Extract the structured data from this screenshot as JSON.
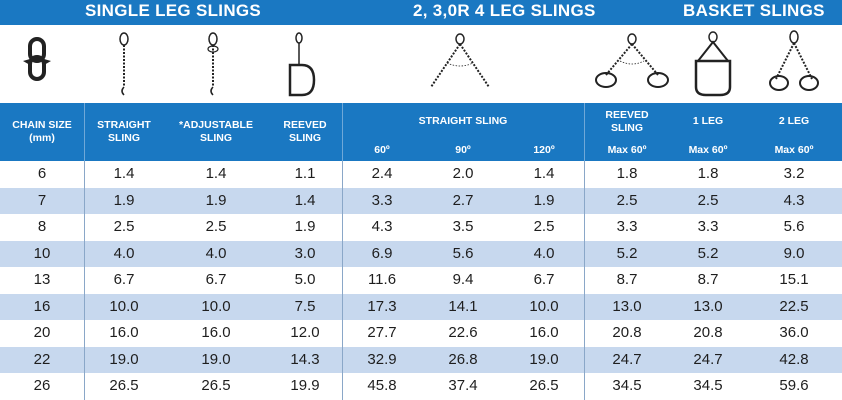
{
  "sections": {
    "single_leg": "SINGLE LEG SLINGS",
    "multi_leg": "2, 3,0R 4 LEG SLINGS",
    "basket": "BASKET SLINGS"
  },
  "icons": [
    "chain-link-icon",
    "straight-sling-icon",
    "adjustable-sling-icon",
    "reeved-sling-icon",
    "multi-leg-sling-icon",
    "reeved-basket-sling-icon",
    "basket-1-leg-icon",
    "basket-2-leg-icon"
  ],
  "headers": {
    "chain_size": "CHAIN SIZE",
    "chain_size_unit": "(mm)",
    "straight": "STRAIGHT",
    "straight_2": "SLING",
    "adjustable": "*ADJUSTABLE",
    "adjustable_2": "SLING",
    "reeved": "REEVED",
    "reeved_2": "SLING",
    "multi_straight": "STRAIGHT SLING",
    "angle_60": "60º",
    "angle_90": "90º",
    "angle_120": "120º",
    "basket_reeved": "REEVED",
    "basket_reeved_2": "SLING",
    "basket_reeved_max": "Max 60º",
    "basket_1leg": "1 LEG",
    "basket_1leg_max": "Max 60º",
    "basket_2leg": "2 LEG",
    "basket_2leg_max": "Max 60º"
  },
  "rows": [
    [
      "6",
      "1.4",
      "1.4",
      "1.1",
      "2.4",
      "2.0",
      "1.4",
      "1.8",
      "1.8",
      "3.2"
    ],
    [
      "7",
      "1.9",
      "1.9",
      "1.4",
      "3.3",
      "2.7",
      "1.9",
      "2.5",
      "2.5",
      "4.3"
    ],
    [
      "8",
      "2.5",
      "2.5",
      "1.9",
      "4.3",
      "3.5",
      "2.5",
      "3.3",
      "3.3",
      "5.6"
    ],
    [
      "10",
      "4.0",
      "4.0",
      "3.0",
      "6.9",
      "5.6",
      "4.0",
      "5.2",
      "5.2",
      "9.0"
    ],
    [
      "13",
      "6.7",
      "6.7",
      "5.0",
      "11.6",
      "9.4",
      "6.7",
      "8.7",
      "8.7",
      "15.1"
    ],
    [
      "16",
      "10.0",
      "10.0",
      "7.5",
      "17.3",
      "14.1",
      "10.0",
      "13.0",
      "13.0",
      "22.5"
    ],
    [
      "20",
      "16.0",
      "16.0",
      "12.0",
      "27.7",
      "22.6",
      "16.0",
      "20.8",
      "20.8",
      "36.0"
    ],
    [
      "22",
      "19.0",
      "19.0",
      "14.3",
      "32.9",
      "26.8",
      "19.0",
      "24.7",
      "24.7",
      "42.8"
    ],
    [
      "26",
      "26.5",
      "26.5",
      "19.9",
      "45.8",
      "37.4",
      "26.5",
      "34.5",
      "34.5",
      "59.6"
    ]
  ],
  "colors": {
    "header_blue": "#1a78c2",
    "alt_row": "#c7d8ee",
    "text": "#1e1e1e"
  }
}
